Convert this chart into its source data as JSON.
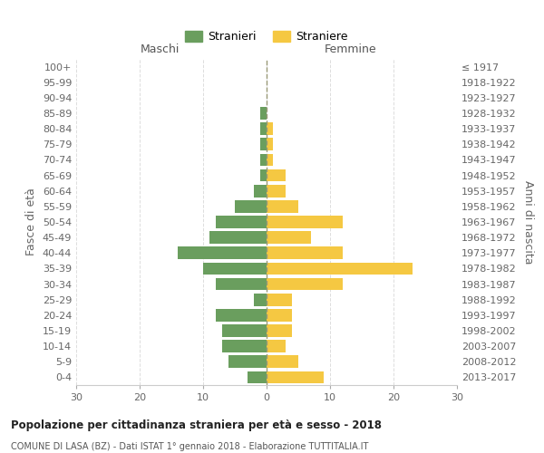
{
  "age_groups": [
    "100+",
    "95-99",
    "90-94",
    "85-89",
    "80-84",
    "75-79",
    "70-74",
    "65-69",
    "60-64",
    "55-59",
    "50-54",
    "45-49",
    "40-44",
    "35-39",
    "30-34",
    "25-29",
    "20-24",
    "15-19",
    "10-14",
    "5-9",
    "0-4"
  ],
  "birth_years": [
    "≤ 1917",
    "1918-1922",
    "1923-1927",
    "1928-1932",
    "1933-1937",
    "1938-1942",
    "1943-1947",
    "1948-1952",
    "1953-1957",
    "1958-1962",
    "1963-1967",
    "1968-1972",
    "1973-1977",
    "1978-1982",
    "1983-1987",
    "1988-1992",
    "1993-1997",
    "1998-2002",
    "2003-2007",
    "2008-2012",
    "2013-2017"
  ],
  "maschi": [
    0,
    0,
    0,
    1,
    1,
    1,
    1,
    1,
    2,
    5,
    8,
    9,
    14,
    10,
    8,
    2,
    8,
    7,
    7,
    6,
    3
  ],
  "femmine": [
    0,
    0,
    0,
    0,
    1,
    1,
    1,
    3,
    3,
    5,
    12,
    7,
    12,
    23,
    12,
    4,
    4,
    4,
    3,
    5,
    9
  ],
  "color_maschi": "#6a9e5e",
  "color_femmine": "#f5c842",
  "title": "Popolazione per cittadinanza straniera per età e sesso - 2018",
  "subtitle": "COMUNE DI LASA (BZ) - Dati ISTAT 1° gennaio 2018 - Elaborazione TUTTITALIA.IT",
  "xlabel_left": "Maschi",
  "xlabel_right": "Femmine",
  "ylabel_left": "Fasce di età",
  "ylabel_right": "Anni di nascita",
  "legend_maschi": "Stranieri",
  "legend_femmine": "Straniere",
  "xlim": 30,
  "bg_color": "#ffffff",
  "grid_color": "#dddddd",
  "bar_height": 0.8
}
